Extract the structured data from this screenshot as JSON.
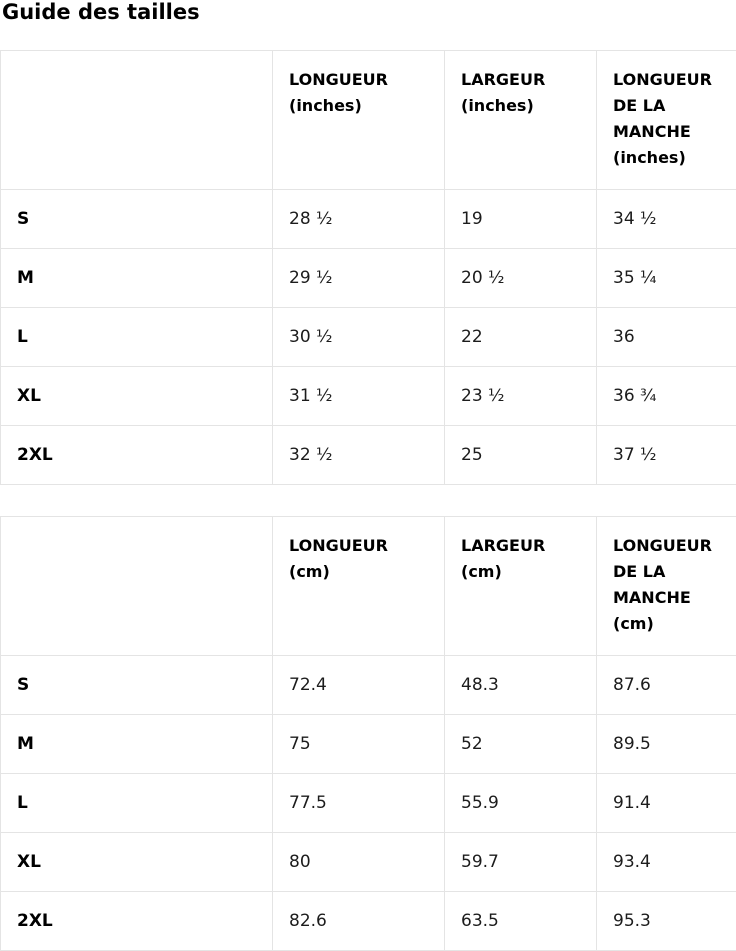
{
  "title": "Guide des tailles",
  "tables": [
    {
      "unit": "inches",
      "columns": [
        "LONGUEUR\n(inches)",
        "LARGEUR\n(inches)",
        "LONGUEUR\nDE LA\nMANCHE\n(inches)"
      ],
      "rows": [
        {
          "label": "S",
          "values": [
            "28 ½",
            "19",
            "34 ½"
          ]
        },
        {
          "label": "M",
          "values": [
            "29 ½",
            "20 ½",
            "35 ¼"
          ]
        },
        {
          "label": "L",
          "values": [
            "30 ½",
            "22",
            "36"
          ]
        },
        {
          "label": "XL",
          "values": [
            "31 ½",
            "23 ½",
            "36 ¾"
          ]
        },
        {
          "label": "2XL",
          "values": [
            "32 ½",
            "25",
            "37 ½"
          ]
        }
      ]
    },
    {
      "unit": "cm",
      "columns": [
        "LONGUEUR\n(cm)",
        "LARGEUR\n(cm)",
        "LONGUEUR\nDE LA\nMANCHE\n(cm)"
      ],
      "rows": [
        {
          "label": "S",
          "values": [
            "72.4",
            "48.3",
            "87.6"
          ]
        },
        {
          "label": "M",
          "values": [
            "75",
            "52",
            "89.5"
          ]
        },
        {
          "label": "L",
          "values": [
            "77.5",
            "55.9",
            "91.4"
          ]
        },
        {
          "label": "XL",
          "values": [
            "80",
            "59.7",
            "93.4"
          ]
        },
        {
          "label": "2XL",
          "values": [
            "82.6",
            "63.5",
            "95.3"
          ]
        }
      ]
    }
  ],
  "colors": {
    "background": "#ffffff",
    "border": "#e4e4e4",
    "heading_text": "#000000",
    "value_text": "#1c1c1c"
  }
}
